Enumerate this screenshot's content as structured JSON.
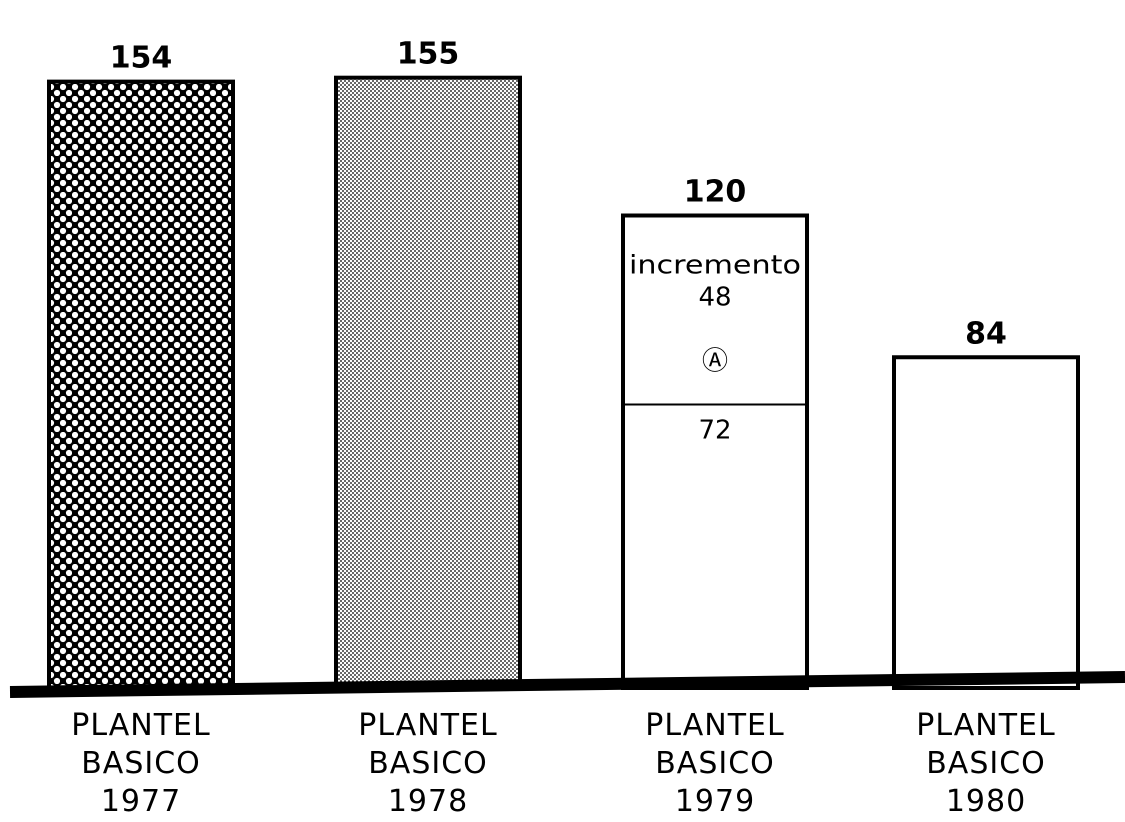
{
  "chart_data": {
    "type": "bar",
    "categories": [
      [
        "PLANTEL",
        "BASICO",
        "1977"
      ],
      [
        "PLANTEL",
        "BASICO",
        "1978"
      ],
      [
        "PLANTEL",
        "BASICO",
        "1979"
      ],
      [
        "PLANTEL",
        "BASICO",
        "1980"
      ]
    ],
    "values": [
      154,
      155,
      120,
      84
    ],
    "value_labels": [
      "154",
      "155",
      "120",
      "84"
    ],
    "segments": [
      null,
      null,
      {
        "lower_value": 72,
        "lower_label": "72",
        "upper_value": 48,
        "upper_label": "48",
        "upper_caption": "incremento",
        "marker": "Ⓐ"
      },
      null
    ],
    "fills": [
      "dense-checker",
      "light-dots",
      "none",
      "none"
    ],
    "ylim": [
      0,
      160
    ],
    "grid": false,
    "legend": "none"
  },
  "colors": {
    "ink": "#000000",
    "paper": "#ffffff"
  }
}
